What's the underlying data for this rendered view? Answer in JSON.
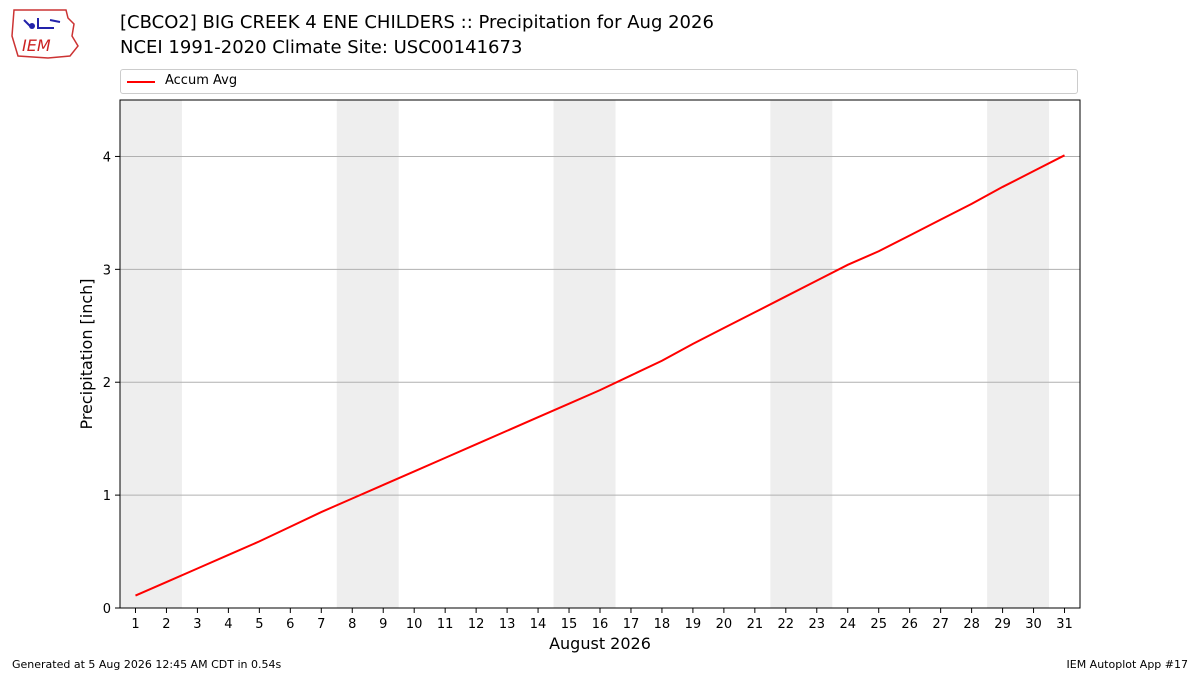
{
  "title_line1": "[CBCO2] BIG CREEK 4 ENE CHILDERS :: Precipitation for Aug 2026",
  "title_line2": "NCEI 1991-2020 Climate Site: USC00141673",
  "logo_text": "IEM",
  "footer_left": "Generated at 5 Aug 2026 12:45 AM CDT in 0.54s",
  "footer_right": "IEM Autoplot App #17",
  "chart_data": {
    "type": "line",
    "xlabel": "August 2026",
    "ylabel": "Precipitation [inch]",
    "xlim": [
      0.5,
      31.5
    ],
    "ylim": [
      0,
      4.5
    ],
    "yticks": [
      0,
      1,
      2,
      3,
      4
    ],
    "x": [
      1,
      2,
      3,
      4,
      5,
      6,
      7,
      8,
      9,
      10,
      11,
      12,
      13,
      14,
      15,
      16,
      17,
      18,
      19,
      20,
      21,
      22,
      23,
      24,
      25,
      26,
      27,
      28,
      29,
      30,
      31
    ],
    "weekend_shading": [
      [
        0.5,
        2.5
      ],
      [
        7.5,
        9.5
      ],
      [
        14.5,
        16.5
      ],
      [
        21.5,
        23.5
      ],
      [
        28.5,
        30.5
      ]
    ],
    "grid": "horizontal",
    "legend_position": "top",
    "series": [
      {
        "name": "Accum Avg",
        "color": "#ff0000",
        "values": [
          0.11,
          0.23,
          0.35,
          0.47,
          0.59,
          0.72,
          0.85,
          0.97,
          1.09,
          1.21,
          1.33,
          1.45,
          1.57,
          1.69,
          1.81,
          1.93,
          2.06,
          2.19,
          2.34,
          2.48,
          2.62,
          2.76,
          2.9,
          3.04,
          3.16,
          3.3,
          3.44,
          3.58,
          3.73,
          3.87,
          4.01
        ]
      }
    ]
  }
}
